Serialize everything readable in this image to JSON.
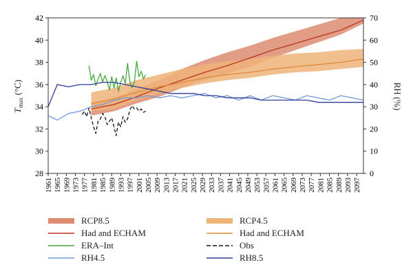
{
  "chart_data": {
    "type": "line",
    "x_axis": {
      "range": [
        1961,
        2100
      ],
      "ticks": [
        1961,
        1965,
        1969,
        1973,
        1977,
        1981,
        1985,
        1989,
        1993,
        1997,
        2001,
        2005,
        2009,
        2013,
        2017,
        2021,
        2025,
        2029,
        2033,
        2037,
        2041,
        2045,
        2049,
        2053,
        2057,
        2061,
        2065,
        2069,
        2073,
        2077,
        2081,
        2085,
        2089,
        2093,
        2097
      ]
    },
    "y_left": {
      "label_main": "T",
      "label_sub": "max",
      "label_unit": " (°C)",
      "range": [
        28,
        42
      ],
      "ticks": [
        28,
        30,
        32,
        34,
        36,
        38,
        40,
        42
      ]
    },
    "y_right": {
      "label": "RH (%)",
      "range": [
        0,
        70
      ],
      "ticks": [
        0,
        10,
        20,
        30,
        40,
        50,
        60,
        70
      ]
    },
    "grid": false,
    "legend_position": "bottom",
    "series": [
      {
        "key": "rcp85_band",
        "name": "RCP8.5",
        "kind": "band",
        "axis": "left",
        "color": "#dd8c72",
        "x": [
          1980,
          1990,
          2000,
          2010,
          2020,
          2030,
          2040,
          2050,
          2060,
          2070,
          2080,
          2090,
          2100
        ],
        "lower": [
          33.2,
          33.6,
          34.3,
          34.9,
          35.7,
          36.4,
          37.0,
          37.6,
          38.4,
          39.1,
          39.8,
          40.5,
          41.5
        ],
        "upper": [
          34.3,
          34.8,
          35.6,
          36.4,
          37.4,
          38.2,
          38.9,
          39.5,
          40.2,
          40.8,
          41.4,
          42.0,
          42.0
        ]
      },
      {
        "key": "rcp45_band",
        "name": "RCP4.5",
        "kind": "band",
        "axis": "left",
        "color": "#efb47a",
        "x": [
          1980,
          1990,
          2000,
          2010,
          2020,
          2030,
          2040,
          2050,
          2060,
          2070,
          2080,
          2090,
          2100
        ],
        "lower": [
          33.6,
          33.8,
          34.6,
          35.2,
          35.7,
          36.1,
          36.4,
          36.6,
          36.9,
          37.1,
          37.2,
          37.4,
          37.6
        ],
        "upper": [
          35.3,
          35.7,
          36.4,
          36.9,
          37.4,
          37.8,
          38.1,
          38.3,
          38.6,
          38.8,
          38.9,
          39.1,
          39.2
        ]
      },
      {
        "key": "had_echam_85",
        "name": "Had and ECHAM",
        "kind": "line",
        "axis": "left",
        "color": "#b83420",
        "x": [
          1980,
          1990,
          2000,
          2010,
          2020,
          2030,
          2040,
          2050,
          2060,
          2070,
          2080,
          2090,
          2100
        ],
        "values": [
          33.8,
          34.2,
          34.9,
          35.7,
          36.4,
          37.1,
          37.7,
          38.4,
          39.1,
          39.7,
          40.3,
          40.9,
          41.8
        ]
      },
      {
        "key": "had_echam_45",
        "name": "Had and ECHAM",
        "kind": "line",
        "axis": "left",
        "color": "#dd8a3a",
        "x": [
          1980,
          1990,
          2000,
          2010,
          2020,
          2030,
          2040,
          2050,
          2060,
          2070,
          2080,
          2090,
          2100
        ],
        "values": [
          34.3,
          34.7,
          35.3,
          35.8,
          36.2,
          36.6,
          36.9,
          37.1,
          37.4,
          37.6,
          37.8,
          38.0,
          38.3
        ]
      },
      {
        "key": "era_int",
        "name": "ERA–Int",
        "kind": "line",
        "axis": "left",
        "color": "#44a83a",
        "x": [
          1979,
          1980,
          1981,
          1982,
          1983,
          1984,
          1985,
          1986,
          1987,
          1988,
          1989,
          1990,
          1991,
          1992,
          1993,
          1994,
          1995,
          1996,
          1997,
          1998,
          1999,
          2000,
          2001,
          2002,
          2003,
          2004
        ],
        "values": [
          37.7,
          36.4,
          36.9,
          35.9,
          36.5,
          37.0,
          36.2,
          36.8,
          36.3,
          35.5,
          36.7,
          35.7,
          36.6,
          35.4,
          36.2,
          36.8,
          36.1,
          37.9,
          36.3,
          35.7,
          36.2,
          38.1,
          36.7,
          37.2,
          36.5,
          36.9
        ]
      },
      {
        "key": "obs",
        "name": "Obs",
        "kind": "line",
        "axis": "left",
        "color": "#111111",
        "dashed": true,
        "x": [
          1976,
          1977,
          1978,
          1979,
          1980,
          1981,
          1982,
          1983,
          1984,
          1985,
          1986,
          1987,
          1988,
          1989,
          1990,
          1991,
          1992,
          1993,
          1994,
          1995,
          1996,
          1997,
          1998,
          1999,
          2000,
          2001,
          2002,
          2003,
          2004
        ],
        "values": [
          33.3,
          33.6,
          33.1,
          33.9,
          33.0,
          32.2,
          31.6,
          32.7,
          32.9,
          33.4,
          33.1,
          32.4,
          32.7,
          33.0,
          32.2,
          31.4,
          32.6,
          32.2,
          33.1,
          32.6,
          32.9,
          33.7,
          34.1,
          33.8,
          33.9,
          33.6,
          33.8,
          33.5,
          33.6
        ]
      },
      {
        "key": "rh45",
        "name": "RH4.5",
        "kind": "line",
        "axis": "right",
        "color": "#6f9ad8",
        "x": [
          1961,
          1965,
          1970,
          1975,
          1980,
          1985,
          1990,
          1995,
          2000,
          2005,
          2010,
          2015,
          2020,
          2025,
          2030,
          2035,
          2040,
          2045,
          2050,
          2055,
          2060,
          2065,
          2070,
          2075,
          2080,
          2085,
          2090,
          2095,
          2100
        ],
        "values": [
          26,
          24,
          27,
          28,
          30,
          31,
          33,
          34,
          34,
          35,
          34,
          35,
          34,
          35,
          36,
          34,
          35,
          33,
          35,
          33,
          35,
          34,
          33,
          35,
          34,
          33,
          35,
          34,
          33
        ]
      },
      {
        "key": "rh85",
        "name": "RH8.5",
        "kind": "line",
        "axis": "right",
        "color": "#2e3a9a",
        "x": [
          1961,
          1965,
          1970,
          1975,
          1980,
          1985,
          1990,
          1995,
          2000,
          2005,
          2010,
          2015,
          2020,
          2025,
          2030,
          2035,
          2040,
          2045,
          2050,
          2055,
          2060,
          2065,
          2070,
          2075,
          2080,
          2085,
          2090,
          2095,
          2100
        ],
        "values": [
          30,
          40,
          39,
          40,
          40,
          41,
          41,
          40,
          39,
          38,
          37,
          36,
          36,
          36,
          35,
          35,
          34,
          34,
          34,
          33,
          33,
          33,
          33,
          33,
          32,
          32,
          32,
          32,
          32
        ]
      }
    ]
  },
  "legend": [
    {
      "label": "RCP8.5",
      "kind": "band",
      "color": "#dd8c72"
    },
    {
      "label": "RCP4.5",
      "kind": "band",
      "color": "#efb47a"
    },
    {
      "label": "Had and ECHAM",
      "kind": "line",
      "color": "#b83420"
    },
    {
      "label": "Had and ECHAM",
      "kind": "line",
      "color": "#dd8a3a"
    },
    {
      "label": "ERA–Int",
      "kind": "line",
      "color": "#44a83a"
    },
    {
      "label": "Obs",
      "kind": "dashed",
      "color": "#111111"
    },
    {
      "label": "RH4.5",
      "kind": "line",
      "color": "#6f9ad8"
    },
    {
      "label": "RH8.5",
      "kind": "line",
      "color": "#2e3a9a"
    }
  ]
}
